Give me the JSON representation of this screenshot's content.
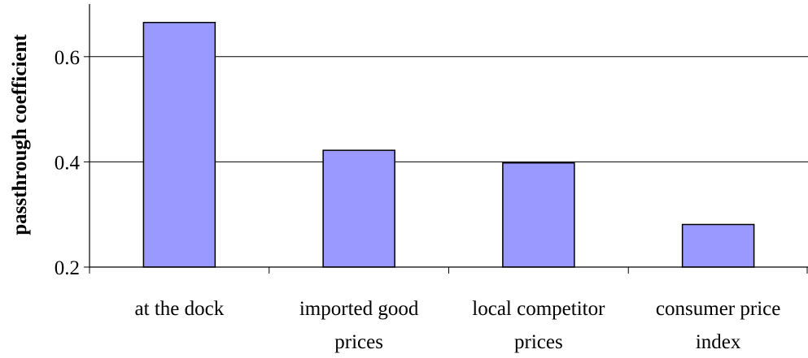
{
  "chart_data": {
    "type": "bar",
    "title": "",
    "xlabel": "",
    "ylabel": "passthrough coefficient",
    "categories": [
      [
        "at the dock"
      ],
      [
        "imported good",
        "prices"
      ],
      [
        "local competitor",
        "prices"
      ],
      [
        "consumer price",
        "index"
      ]
    ],
    "values": [
      0.665,
      0.422,
      0.398,
      0.281
    ],
    "ylim": [
      0.2,
      0.7
    ],
    "yticks": [
      0.2,
      0.4,
      0.6
    ],
    "ytick_labels": [
      "0.2",
      "0.4",
      "0.6"
    ],
    "grid": true,
    "bar_color": "#9999ff",
    "bar_edge_color": "#000000"
  }
}
